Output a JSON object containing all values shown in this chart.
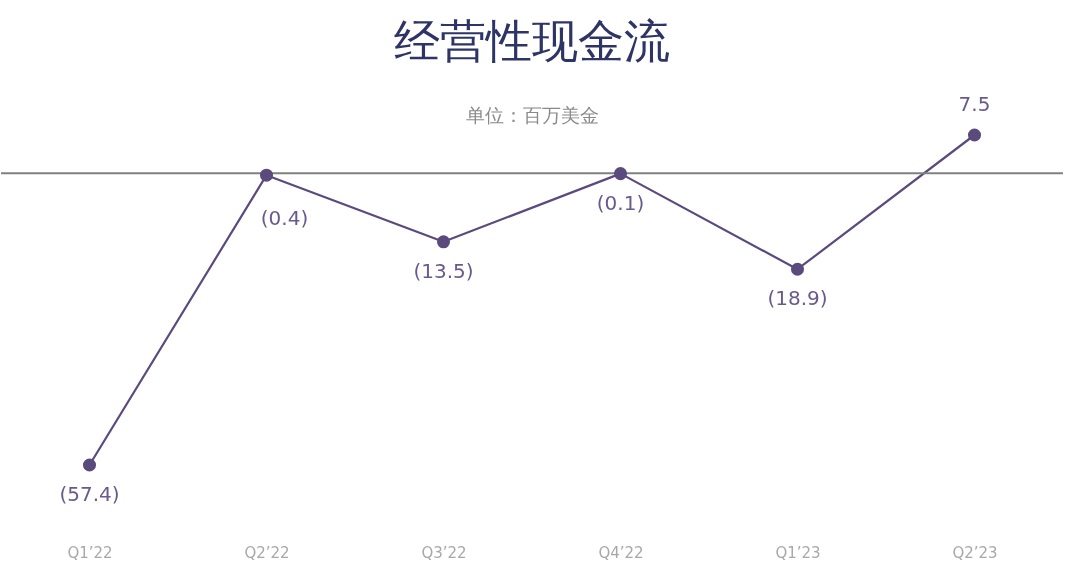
{
  "chart_data": {
    "type": "line",
    "title": "经营性现金流",
    "subtitle": "单位：百万美金",
    "categories": [
      "Q1’22",
      "Q2’22",
      "Q3’22",
      "Q4’22",
      "Q1’23",
      "Q2’23"
    ],
    "series": [
      {
        "color": "#5b4a7c",
        "values": [
          -57.4,
          -0.4,
          -13.5,
          -0.1,
          -18.9,
          7.5
        ],
        "value_labels": [
          "(57.4)",
          "(0.4)",
          "(13.5)",
          "(0.1)",
          "(18.9)",
          "7.5"
        ]
      }
    ],
    "ref_lines": [
      {
        "axis": "y",
        "value": 0,
        "color": "#808080"
      }
    ],
    "grid": false,
    "tick_labels": "x",
    "marker": "circle",
    "line_style": "solid"
  }
}
